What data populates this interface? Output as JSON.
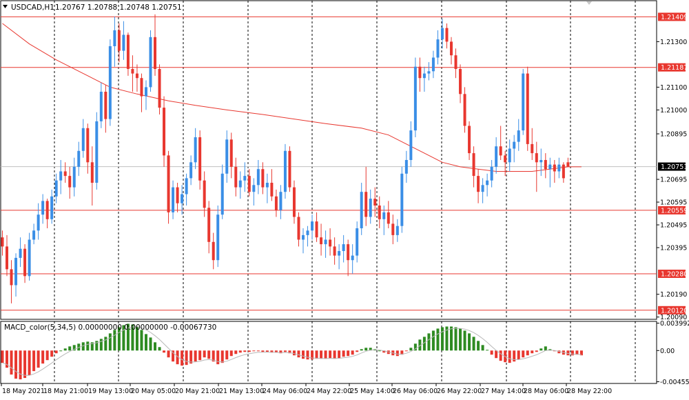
{
  "header": {
    "symbol_timeframe": "USDCAD,H1",
    "ohlc": "1.20767 1.20788 1.20748 1.20751",
    "menu_icon": "triangle-down-icon"
  },
  "indicator": {
    "label": "MACD_color(5,34,5) 0.00000000 0.00000000 -0.00067730"
  },
  "colors": {
    "bull": "#3a8ee6",
    "bear": "#e8372f",
    "ma": "#e8372f",
    "hline": "#e8372f",
    "hist_pos": "#2e8b22",
    "hist_neg": "#e8372f",
    "signal": "#b8b8b8",
    "grid": "#000000"
  },
  "chart_data": {
    "type": "candlestick",
    "symbol": "USDCAD",
    "timeframe": "H1",
    "price_axis": {
      "ylim": [
        1.2008,
        1.2148
      ],
      "ticks": [
        "1.21300",
        "1.21100",
        "1.21000",
        "1.20895",
        "1.20695",
        "1.20595",
        "1.20495",
        "1.20395",
        "1.20190",
        "1.20090"
      ],
      "tick_values": [
        1.213,
        1.211,
        1.21,
        1.20895,
        1.20695,
        1.20595,
        1.20495,
        1.20395,
        1.2019,
        1.2009
      ]
    },
    "horizontal_levels": [
      {
        "label": "1.21409",
        "value": 1.21409
      },
      {
        "label": "1.21187",
        "value": 1.21187
      },
      {
        "label": "1.20559",
        "value": 1.20559
      },
      {
        "label": "1.20280",
        "value": 1.2028
      },
      {
        "label": "1.20120",
        "value": 1.2012
      }
    ],
    "current_price": {
      "label": "1.20751",
      "value": 1.20751
    },
    "time_axis": {
      "labels": [
        "18 May 2021",
        "18 May 21:00",
        "19 May 13:00",
        "20 May 05:00",
        "20 May 21:00",
        "21 May 13:00",
        "24 May 06:00",
        "24 May 22:00",
        "25 May 14:00",
        "26 May 06:00",
        "26 May 22:00",
        "27 May 14:00",
        "28 May 06:00",
        "28 May 22:00"
      ]
    },
    "candles": [
      [
        1.2044,
        1.2047,
        1.2036,
        1.204
      ],
      [
        1.204,
        1.2045,
        1.2027,
        1.203
      ],
      [
        1.203,
        1.2034,
        1.2015,
        1.2023
      ],
      [
        1.2023,
        1.2037,
        1.2018,
        1.2035
      ],
      [
        1.2035,
        1.2044,
        1.2031,
        1.2039
      ],
      [
        1.2039,
        1.2041,
        1.2024,
        1.2027
      ],
      [
        1.2027,
        1.2046,
        1.2025,
        1.2043
      ],
      [
        1.2043,
        1.205,
        1.2041,
        1.2047
      ],
      [
        1.2047,
        1.2059,
        1.2043,
        1.2054
      ],
      [
        1.2054,
        1.2063,
        1.205,
        1.206
      ],
      [
        1.206,
        1.2061,
        1.2048,
        1.2052
      ],
      [
        1.2052,
        1.2065,
        1.205,
        1.2062
      ],
      [
        1.2062,
        1.2072,
        1.2059,
        1.2069
      ],
      [
        1.2069,
        1.2078,
        1.2063,
        1.2073
      ],
      [
        1.2073,
        1.2077,
        1.2068,
        1.2071
      ],
      [
        1.2071,
        1.2075,
        1.2061,
        1.2066
      ],
      [
        1.2066,
        1.2079,
        1.2062,
        1.2075
      ],
      [
        1.2075,
        1.2086,
        1.2071,
        1.2082
      ],
      [
        1.2082,
        1.2096,
        1.2079,
        1.2092
      ],
      [
        1.2092,
        1.2094,
        1.2072,
        1.2077
      ],
      [
        1.2077,
        1.2084,
        1.2058,
        1.2068
      ],
      [
        1.2068,
        1.2099,
        1.2065,
        1.2095
      ],
      [
        1.2095,
        1.2112,
        1.2092,
        1.2108
      ],
      [
        1.2108,
        1.2111,
        1.209,
        1.2096
      ],
      [
        1.2096,
        1.2131,
        1.2093,
        1.2128
      ],
      [
        1.2128,
        1.2141,
        1.2119,
        1.2135
      ],
      [
        1.2135,
        1.2138,
        1.2121,
        1.2126
      ],
      [
        1.2126,
        1.2139,
        1.2122,
        1.2133
      ],
      [
        1.2133,
        1.2134,
        1.2115,
        1.2118
      ],
      [
        1.2118,
        1.2124,
        1.2108,
        1.2116
      ],
      [
        1.2116,
        1.212,
        1.2108,
        1.2114
      ],
      [
        1.2114,
        1.2116,
        1.2099,
        1.2106
      ],
      [
        1.2106,
        1.2113,
        1.21,
        1.211
      ],
      [
        1.211,
        1.2135,
        1.2108,
        1.2132
      ],
      [
        1.2132,
        1.2142,
        1.2115,
        1.2118
      ],
      [
        1.2118,
        1.212,
        1.2098,
        1.2101
      ],
      [
        1.2101,
        1.2106,
        1.2075,
        1.208
      ],
      [
        1.208,
        1.2082,
        1.205,
        1.2055
      ],
      [
        1.2055,
        1.2069,
        1.2052,
        1.2066
      ],
      [
        1.2066,
        1.2068,
        1.2055,
        1.2059
      ],
      [
        1.2059,
        1.2067,
        1.2054,
        1.2063
      ],
      [
        1.2063,
        1.2072,
        1.2058,
        1.207
      ],
      [
        1.207,
        1.208,
        1.2067,
        1.2077
      ],
      [
        1.2077,
        1.2092,
        1.2074,
        1.2088
      ],
      [
        1.2088,
        1.2091,
        1.2065,
        1.2069
      ],
      [
        1.2069,
        1.2073,
        1.2053,
        1.2057
      ],
      [
        1.2057,
        1.206,
        1.2037,
        1.2042
      ],
      [
        1.2042,
        1.2046,
        1.203,
        1.2034
      ],
      [
        1.2034,
        1.2058,
        1.2031,
        1.2054
      ],
      [
        1.2054,
        1.2076,
        1.2052,
        1.2072
      ],
      [
        1.2072,
        1.2091,
        1.2068,
        1.2087
      ],
      [
        1.2087,
        1.209,
        1.207,
        1.2075
      ],
      [
        1.2075,
        1.2079,
        1.2062,
        1.2066
      ],
      [
        1.2066,
        1.2073,
        1.2061,
        1.2069
      ],
      [
        1.2069,
        1.2077,
        1.2064,
        1.2071
      ],
      [
        1.2071,
        1.2074,
        1.2062,
        1.2064
      ],
      [
        1.2064,
        1.207,
        1.2058,
        1.2067
      ],
      [
        1.2067,
        1.2078,
        1.2063,
        1.2074
      ],
      [
        1.2074,
        1.2077,
        1.2063,
        1.2066
      ],
      [
        1.2066,
        1.2072,
        1.2059,
        1.2068
      ],
      [
        1.2068,
        1.2074,
        1.206,
        1.2062
      ],
      [
        1.2062,
        1.2065,
        1.2053,
        1.2056
      ],
      [
        1.2056,
        1.2067,
        1.2052,
        1.2064
      ],
      [
        1.2064,
        1.2085,
        1.2061,
        1.2082
      ],
      [
        1.2082,
        1.2084,
        1.2064,
        1.2066
      ],
      [
        1.2066,
        1.2069,
        1.205,
        1.2053
      ],
      [
        1.2053,
        1.2055,
        1.204,
        1.2043
      ],
      [
        1.2043,
        1.2048,
        1.2037,
        1.2045
      ],
      [
        1.2045,
        1.2049,
        1.204,
        1.2047
      ],
      [
        1.2047,
        1.2054,
        1.2043,
        1.2051
      ],
      [
        1.2051,
        1.2055,
        1.2042,
        1.2044
      ],
      [
        1.2044,
        1.205,
        1.2036,
        1.2041
      ],
      [
        1.2041,
        1.2047,
        1.2035,
        1.2043
      ],
      [
        1.2043,
        1.2048,
        1.2036,
        1.204
      ],
      [
        1.204,
        1.2044,
        1.2032,
        1.2036
      ],
      [
        1.2036,
        1.2041,
        1.203,
        1.2038
      ],
      [
        1.2038,
        1.2045,
        1.2033,
        1.2041
      ],
      [
        1.2041,
        1.2043,
        1.2027,
        1.2034
      ],
      [
        1.2034,
        1.2041,
        1.2028,
        1.2036
      ],
      [
        1.2036,
        1.2051,
        1.2033,
        1.2048
      ],
      [
        1.2048,
        1.2068,
        1.2045,
        1.2064
      ],
      [
        1.2064,
        1.2075,
        1.2049,
        1.2053
      ],
      [
        1.2053,
        1.2065,
        1.205,
        1.2061
      ],
      [
        1.2061,
        1.2066,
        1.2053,
        1.2058
      ],
      [
        1.2058,
        1.2062,
        1.2048,
        1.2052
      ],
      [
        1.2052,
        1.2058,
        1.2045,
        1.2055
      ],
      [
        1.2055,
        1.206,
        1.2048,
        1.205
      ],
      [
        1.205,
        1.2054,
        1.2041,
        1.2045
      ],
      [
        1.2045,
        1.2052,
        1.2042,
        1.2049
      ],
      [
        1.2049,
        1.2075,
        1.2046,
        1.2072
      ],
      [
        1.2072,
        1.2082,
        1.2068,
        1.2078
      ],
      [
        1.2078,
        1.2095,
        1.2075,
        1.2091
      ],
      [
        1.2091,
        1.2123,
        1.2088,
        1.2119
      ],
      [
        1.2119,
        1.2123,
        1.2108,
        1.2114
      ],
      [
        1.2114,
        1.2119,
        1.2108,
        1.2116
      ],
      [
        1.2116,
        1.2121,
        1.2113,
        1.2117
      ],
      [
        1.2117,
        1.2126,
        1.2114,
        1.2123
      ],
      [
        1.2123,
        1.2135,
        1.212,
        1.2131
      ],
      [
        1.2131,
        1.214,
        1.2127,
        1.2136
      ],
      [
        1.2136,
        1.2138,
        1.2127,
        1.213
      ],
      [
        1.213,
        1.2132,
        1.212,
        1.2124
      ],
      [
        1.2124,
        1.2127,
        1.2114,
        1.2118
      ],
      [
        1.2118,
        1.212,
        1.2103,
        1.2107
      ],
      [
        1.2107,
        1.211,
        1.209,
        1.2093
      ],
      [
        1.2093,
        1.2095,
        1.2078,
        1.2081
      ],
      [
        1.2081,
        1.2084,
        1.2066,
        1.2071
      ],
      [
        1.2071,
        1.2074,
        1.2059,
        1.2064
      ],
      [
        1.2064,
        1.207,
        1.2059,
        1.2067
      ],
      [
        1.2067,
        1.2072,
        1.2062,
        1.2069
      ],
      [
        1.2069,
        1.2078,
        1.2066,
        1.2075
      ],
      [
        1.2075,
        1.2088,
        1.2072,
        1.2084
      ],
      [
        1.2084,
        1.2093,
        1.2078,
        1.208
      ],
      [
        1.208,
        1.2082,
        1.2071,
        1.2077
      ],
      [
        1.2077,
        1.2087,
        1.2073,
        1.2083
      ],
      [
        1.2083,
        1.2089,
        1.2077,
        1.2086
      ],
      [
        1.2086,
        1.2096,
        1.2082,
        1.2091
      ],
      [
        1.2091,
        1.2118,
        1.2089,
        1.2116
      ],
      [
        1.2116,
        1.2119,
        1.2082,
        1.2085
      ],
      [
        1.2085,
        1.2092,
        1.2078,
        1.2081
      ],
      [
        1.2081,
        1.2086,
        1.2064,
        1.2077
      ],
      [
        1.2077,
        1.2083,
        1.2071,
        1.2078
      ],
      [
        1.2078,
        1.2081,
        1.207,
        1.2074
      ],
      [
        1.2074,
        1.2079,
        1.2066,
        1.2076
      ],
      [
        1.2076,
        1.2078,
        1.2068,
        1.2073
      ],
      [
        1.2073,
        1.2079,
        1.207,
        1.2076
      ],
      [
        1.2076,
        1.2077,
        1.2068,
        1.207
      ],
      [
        1.2077,
        1.2079,
        1.2075,
        1.2075
      ]
    ],
    "moving_average": [
      [
        0,
        1.2138
      ],
      [
        6,
        1.2129
      ],
      [
        12,
        1.2122
      ],
      [
        18,
        1.2116
      ],
      [
        24,
        1.211
      ],
      [
        30,
        1.2107
      ],
      [
        37,
        1.2104
      ],
      [
        43,
        1.2102
      ],
      [
        50,
        1.21
      ],
      [
        58,
        1.2098
      ],
      [
        65,
        1.2096
      ],
      [
        72,
        1.2094
      ],
      [
        80,
        1.2092
      ],
      [
        86,
        1.2089
      ],
      [
        90,
        1.2085
      ],
      [
        94,
        1.2081
      ],
      [
        98,
        1.2077
      ],
      [
        102,
        1.2075
      ],
      [
        106,
        1.2074
      ],
      [
        110,
        1.2073
      ],
      [
        114,
        1.2073
      ],
      [
        118,
        1.2073
      ],
      [
        122,
        1.2074
      ],
      [
        126,
        1.2075
      ],
      [
        129,
        1.2075
      ]
    ],
    "macd": {
      "label": "MACD_color(5,34,5)",
      "ylim": [
        -0.0048,
        0.00425
      ],
      "ticks": [
        "0.003992",
        "0.00",
        "-0.004551"
      ],
      "tick_values": [
        0.003992,
        0.0,
        -0.004551
      ],
      "histogram": [
        -0.0018,
        -0.0025,
        -0.0035,
        -0.0041,
        -0.0042,
        -0.004,
        -0.0036,
        -0.003,
        -0.0025,
        -0.0019,
        -0.0014,
        -0.0009,
        -0.0004,
        0.0,
        0.0003,
        0.0006,
        0.0008,
        0.001,
        0.0012,
        0.0013,
        0.0012,
        0.0014,
        0.0017,
        0.002,
        0.0025,
        0.003,
        0.0034,
        0.0037,
        0.0039,
        0.0038,
        0.0035,
        0.003,
        0.0024,
        0.0019,
        0.0012,
        0.0005,
        -0.0003,
        -0.001,
        -0.0016,
        -0.002,
        -0.0022,
        -0.0021,
        -0.0019,
        -0.0016,
        -0.0014,
        -0.001,
        -0.0012,
        -0.0016,
        -0.002,
        -0.0018,
        -0.0013,
        -0.0008,
        -0.0005,
        -0.0003,
        -0.0002,
        -0.0002,
        -0.0001,
        -0.0001,
        -0.0002,
        -0.0002,
        -0.0003,
        -0.0003,
        -0.0004,
        -0.0002,
        -0.0004,
        -0.0007,
        -0.001,
        -0.0012,
        -0.0013,
        -0.0013,
        -0.0012,
        -0.0012,
        -0.0012,
        -0.0011,
        -0.0012,
        -0.0011,
        -0.0009,
        -0.0008,
        -0.0006,
        -0.0002,
        0.0002,
        0.0004,
        0.0004,
        0.0002,
        0.0,
        -0.0003,
        -0.0005,
        -0.0007,
        -0.0008,
        -0.0006,
        -0.0001,
        0.0004,
        0.001,
        0.0016,
        0.002,
        0.0025,
        0.0029,
        0.0032,
        0.0034,
        0.0035,
        0.0035,
        0.0034,
        0.0032,
        0.0029,
        0.0025,
        0.002,
        0.0014,
        0.0008,
        0.0001,
        -0.0006,
        -0.0011,
        -0.0015,
        -0.0017,
        -0.0018,
        -0.0016,
        -0.0013,
        -0.001,
        -0.0007,
        -0.0004,
        -0.0002,
        0.0003,
        0.0006,
        0.0002,
        -0.0001,
        -0.0004,
        -0.0006,
        -0.0007,
        -0.0007,
        -0.0006,
        -0.0007
      ]
    }
  }
}
